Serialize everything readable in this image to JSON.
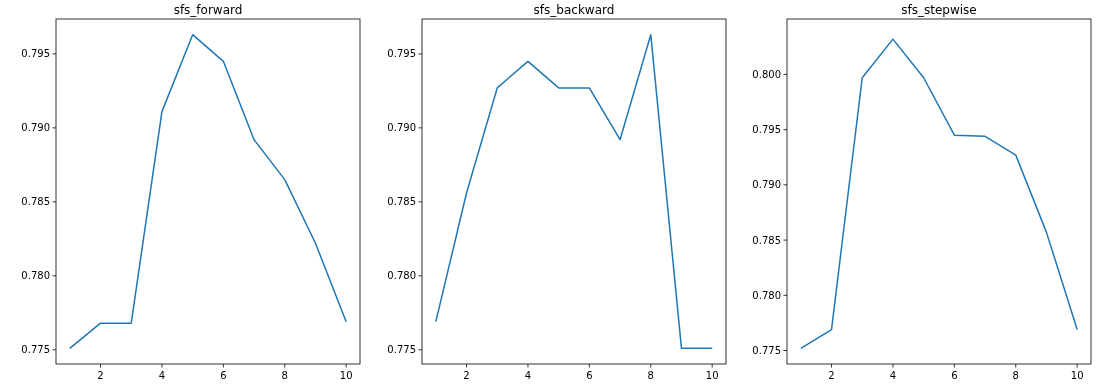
{
  "chart_data": [
    {
      "type": "line",
      "title": "sfs_forward",
      "x": [
        1,
        2,
        3,
        4,
        5,
        6,
        7,
        8,
        9,
        10
      ],
      "xlim": [
        0.55,
        10.45
      ],
      "xticks": [
        2,
        4,
        6,
        8,
        10
      ],
      "ylim": [
        0.77404,
        0.79736
      ],
      "yticks": [
        {
          "value": 0.775,
          "label": "0.775"
        },
        {
          "value": 0.78,
          "label": "0.780"
        },
        {
          "value": 0.785,
          "label": "0.785"
        },
        {
          "value": 0.79,
          "label": "0.790"
        },
        {
          "value": 0.795,
          "label": "0.795"
        }
      ],
      "grid": false,
      "series": [
        {
          "color": "#1f77b4",
          "values": [
            0.7751,
            0.7768,
            0.7768,
            0.7911,
            0.7963,
            0.7945,
            0.7892,
            0.7865,
            0.7822,
            0.7769
          ]
        }
      ]
    },
    {
      "type": "line",
      "title": "sfs_backward",
      "x": [
        1,
        2,
        3,
        4,
        5,
        6,
        7,
        8,
        9,
        10
      ],
      "xlim": [
        0.55,
        10.45
      ],
      "xticks": [
        2,
        4,
        6,
        8,
        10
      ],
      "ylim": [
        0.77404,
        0.79736
      ],
      "yticks": [
        {
          "value": 0.775,
          "label": "0.775"
        },
        {
          "value": 0.78,
          "label": "0.780"
        },
        {
          "value": 0.785,
          "label": "0.785"
        },
        {
          "value": 0.79,
          "label": "0.790"
        },
        {
          "value": 0.795,
          "label": "0.795"
        }
      ],
      "grid": false,
      "series": [
        {
          "color": "#1f77b4",
          "values": [
            0.7769,
            0.7856,
            0.7927,
            0.7945,
            0.7927,
            0.7927,
            0.7892,
            0.7963,
            0.7751,
            0.7751
          ]
        }
      ]
    },
    {
      "type": "line",
      "title": "sfs_stepwise",
      "x": [
        1,
        2,
        3,
        4,
        5,
        6,
        7,
        8,
        9,
        10
      ],
      "xlim": [
        0.55,
        10.45
      ],
      "xticks": [
        2,
        4,
        6,
        8,
        10
      ],
      "ylim": [
        0.77378,
        0.80502
      ],
      "yticks": [
        {
          "value": 0.775,
          "label": "0.775"
        },
        {
          "value": 0.78,
          "label": "0.780"
        },
        {
          "value": 0.785,
          "label": "0.785"
        },
        {
          "value": 0.79,
          "label": "0.790"
        },
        {
          "value": 0.795,
          "label": "0.795"
        },
        {
          "value": 0.8,
          "label": "0.800"
        }
      ],
      "grid": false,
      "series": [
        {
          "color": "#1f77b4",
          "values": [
            0.7752,
            0.7769,
            0.7997,
            0.8032,
            0.7997,
            0.7945,
            0.7944,
            0.7927,
            0.7857,
            0.7769
          ]
        }
      ]
    }
  ]
}
